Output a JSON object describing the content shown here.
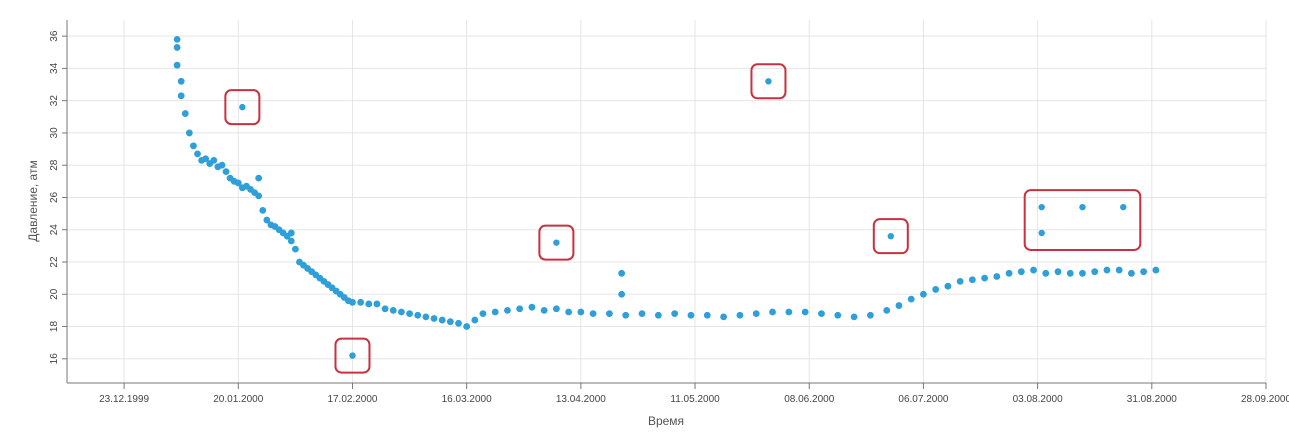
{
  "chart_data": {
    "type": "scatter",
    "title": "",
    "xlabel": "Время",
    "ylabel": "Давление, атм",
    "xlim": [
      "1999-12-09",
      "2000-09-28"
    ],
    "ylim": [
      14.5,
      37
    ],
    "x_ticks": [
      "23.12.1999",
      "20.01.2000",
      "17.02.2000",
      "16.03.2000",
      "13.04.2000",
      "11.05.2000",
      "08.06.2000",
      "06.07.2000",
      "03.08.2000",
      "31.08.2000",
      "28.09.2000"
    ],
    "y_ticks": [
      16,
      18,
      20,
      22,
      24,
      26,
      28,
      30,
      32,
      34,
      36
    ],
    "grid": true,
    "legend": "none",
    "colors": {
      "points": "#2e9fd8",
      "highlight": "#c8313f",
      "grid": "#e5e5e5",
      "axis": "#777777"
    },
    "series": [
      {
        "values": [
          [
            "2000-01-05",
            35.8
          ],
          [
            "2000-01-05",
            35.3
          ],
          [
            "2000-01-05",
            34.2
          ],
          [
            "2000-01-06",
            33.2
          ],
          [
            "2000-01-06",
            32.3
          ],
          [
            "2000-01-07",
            31.2
          ],
          [
            "2000-01-08",
            30.0
          ],
          [
            "2000-01-09",
            29.2
          ],
          [
            "2000-01-10",
            28.7
          ],
          [
            "2000-01-11",
            28.3
          ],
          [
            "2000-01-12",
            28.4
          ],
          [
            "2000-01-13",
            28.1
          ],
          [
            "2000-01-14",
            28.3
          ],
          [
            "2000-01-15",
            27.9
          ],
          [
            "2000-01-16",
            28.0
          ],
          [
            "2000-01-17",
            27.6
          ],
          [
            "2000-01-18",
            27.2
          ],
          [
            "2000-01-19",
            27.0
          ],
          [
            "2000-01-20",
            26.9
          ],
          [
            "2000-01-21",
            26.6
          ],
          [
            "2000-01-22",
            26.7
          ],
          [
            "2000-01-23",
            26.5
          ],
          [
            "2000-01-24",
            26.3
          ],
          [
            "2000-01-25",
            26.1
          ],
          [
            "2000-01-26",
            25.2
          ],
          [
            "2000-01-27",
            24.6
          ],
          [
            "2000-01-28",
            24.3
          ],
          [
            "2000-01-29",
            24.2
          ],
          [
            "2000-01-30",
            24.0
          ],
          [
            "2000-01-31",
            23.8
          ],
          [
            "2000-02-01",
            23.6
          ],
          [
            "2000-02-02",
            23.3
          ],
          [
            "2000-02-03",
            22.8
          ],
          [
            "2000-02-04",
            22.0
          ],
          [
            "2000-02-05",
            21.8
          ],
          [
            "2000-02-06",
            21.6
          ],
          [
            "2000-02-07",
            21.4
          ],
          [
            "2000-02-08",
            21.2
          ],
          [
            "2000-02-09",
            21.0
          ],
          [
            "2000-02-10",
            20.8
          ],
          [
            "2000-02-11",
            20.6
          ],
          [
            "2000-02-12",
            20.4
          ],
          [
            "2000-02-13",
            20.2
          ],
          [
            "2000-02-14",
            20.0
          ],
          [
            "2000-02-15",
            19.8
          ],
          [
            "2000-02-16",
            19.6
          ],
          [
            "2000-02-17",
            19.5
          ],
          [
            "2000-02-19",
            19.5
          ],
          [
            "2000-02-21",
            19.4
          ],
          [
            "2000-02-23",
            19.4
          ],
          [
            "2000-02-25",
            19.1
          ],
          [
            "2000-02-27",
            19.0
          ],
          [
            "2000-02-29",
            18.9
          ],
          [
            "2000-03-02",
            18.8
          ],
          [
            "2000-03-04",
            18.7
          ],
          [
            "2000-03-06",
            18.6
          ],
          [
            "2000-03-08",
            18.5
          ],
          [
            "2000-03-10",
            18.4
          ],
          [
            "2000-03-12",
            18.3
          ],
          [
            "2000-03-14",
            18.2
          ],
          [
            "2000-03-16",
            18.0
          ],
          [
            "2000-03-18",
            18.4
          ],
          [
            "2000-03-20",
            18.8
          ],
          [
            "2000-03-23",
            18.9
          ],
          [
            "2000-03-26",
            19.0
          ],
          [
            "2000-03-29",
            19.1
          ],
          [
            "2000-04-01",
            19.2
          ],
          [
            "2000-04-04",
            19.0
          ],
          [
            "2000-04-07",
            19.1
          ],
          [
            "2000-04-10",
            18.9
          ],
          [
            "2000-04-13",
            18.9
          ],
          [
            "2000-04-16",
            18.8
          ],
          [
            "2000-04-20",
            18.8
          ],
          [
            "2000-04-24",
            18.7
          ],
          [
            "2000-04-28",
            18.8
          ],
          [
            "2000-05-02",
            18.7
          ],
          [
            "2000-05-06",
            18.8
          ],
          [
            "2000-05-10",
            18.7
          ],
          [
            "2000-05-14",
            18.7
          ],
          [
            "2000-05-18",
            18.6
          ],
          [
            "2000-05-22",
            18.7
          ],
          [
            "2000-05-26",
            18.8
          ],
          [
            "2000-05-30",
            18.9
          ],
          [
            "2000-06-03",
            18.9
          ],
          [
            "2000-06-07",
            18.9
          ],
          [
            "2000-06-11",
            18.8
          ],
          [
            "2000-06-15",
            18.7
          ],
          [
            "2000-06-19",
            18.6
          ],
          [
            "2000-06-23",
            18.7
          ],
          [
            "2000-06-27",
            19.0
          ],
          [
            "2000-06-30",
            19.3
          ],
          [
            "2000-07-03",
            19.7
          ],
          [
            "2000-07-06",
            20.0
          ],
          [
            "2000-07-09",
            20.3
          ],
          [
            "2000-07-12",
            20.5
          ],
          [
            "2000-07-15",
            20.8
          ],
          [
            "2000-07-18",
            20.9
          ],
          [
            "2000-07-21",
            21.0
          ],
          [
            "2000-07-24",
            21.1
          ],
          [
            "2000-07-27",
            21.3
          ],
          [
            "2000-07-30",
            21.4
          ],
          [
            "2000-08-02",
            21.5
          ],
          [
            "2000-08-05",
            21.3
          ],
          [
            "2000-08-08",
            21.4
          ],
          [
            "2000-08-11",
            21.3
          ],
          [
            "2000-08-14",
            21.3
          ],
          [
            "2000-08-17",
            21.4
          ],
          [
            "2000-08-20",
            21.5
          ],
          [
            "2000-08-23",
            21.5
          ],
          [
            "2000-08-26",
            21.3
          ],
          [
            "2000-08-29",
            21.4
          ],
          [
            "2000-09-01",
            21.5
          ],
          [
            "2000-01-25",
            27.2
          ],
          [
            "2000-02-02",
            23.8
          ],
          [
            "2000-04-23",
            21.3
          ],
          [
            "2000-04-23",
            20.0
          ]
        ]
      }
    ],
    "outliers": [
      [
        "2000-01-21",
        31.6
      ],
      [
        "2000-02-17",
        16.2
      ],
      [
        "2000-04-07",
        23.2
      ],
      [
        "2000-05-29",
        33.2
      ],
      [
        "2000-06-28",
        23.6
      ],
      [
        "2000-08-04",
        25.4
      ],
      [
        "2000-08-04",
        23.8
      ],
      [
        "2000-08-14",
        25.4
      ],
      [
        "2000-08-24",
        25.4
      ]
    ]
  }
}
